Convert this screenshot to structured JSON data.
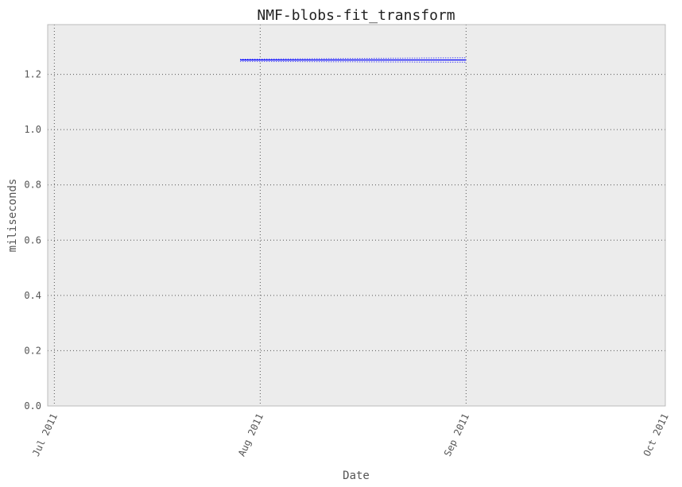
{
  "chart_data": {
    "type": "line",
    "title": "NMF-blobs-fit_transform",
    "xlabel": "Date",
    "ylabel": "miliseconds",
    "xlim": [
      "2011-06-30",
      "2011-10-01"
    ],
    "ylim": [
      0,
      1.38
    ],
    "x_ticks": [
      {
        "date": "2011-07-01",
        "label": "Jul 2011"
      },
      {
        "date": "2011-08-01",
        "label": "Aug 2011"
      },
      {
        "date": "2011-09-01",
        "label": "Sep 2011"
      },
      {
        "date": "2011-10-01",
        "label": "Oct 2011"
      }
    ],
    "y_ticks": [
      {
        "value": 0.0,
        "label": "0.0"
      },
      {
        "value": 0.2,
        "label": "0.2"
      },
      {
        "value": 0.4,
        "label": "0.4"
      },
      {
        "value": 0.6,
        "label": "0.6"
      },
      {
        "value": 0.8,
        "label": "0.8"
      },
      {
        "value": 1.0,
        "label": "1.0"
      },
      {
        "value": 1.2,
        "label": "1.2"
      }
    ],
    "grid": true,
    "series": [
      {
        "style": "solid",
        "color": "#0000ff",
        "x": [
          "2011-07-29",
          "2011-09-01"
        ],
        "y": [
          1.252,
          1.252
        ]
      },
      {
        "style": "dotted",
        "color": "#0000ff",
        "x": [
          "2011-07-29",
          "2011-09-01"
        ],
        "y": [
          1.247,
          1.244
        ]
      },
      {
        "style": "dotted",
        "color": "#0000ff",
        "x": [
          "2011-07-29",
          "2011-09-01"
        ],
        "y": [
          1.255,
          1.26
        ]
      }
    ]
  },
  "colors": {
    "plot_background": "#ececec",
    "frame": "#bbbbbb",
    "grid": "#555555",
    "line": "#0000ff"
  }
}
